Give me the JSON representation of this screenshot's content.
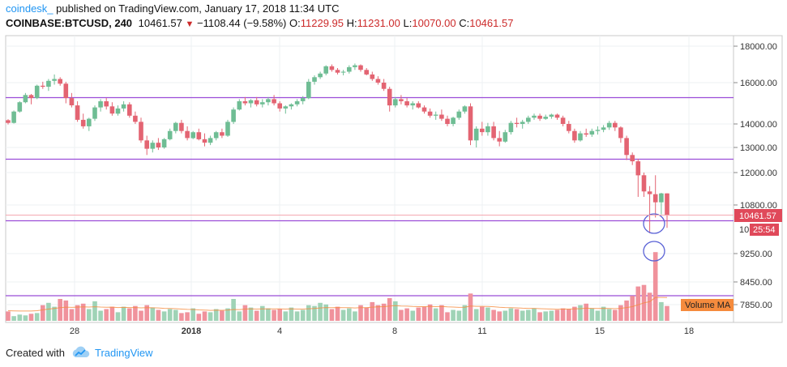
{
  "header": {
    "author": "coindesk_",
    "published": "published on TradingView.com, January 17, 2018 11:34 UTC",
    "symbol": "COINBASE:BTCUSD, 240",
    "last": "10461.57",
    "change": "−1108.44 (−9.58%)",
    "open_label": "O:",
    "open": "11229.95",
    "high_label": "H:",
    "high": "11231.00",
    "low_label": "L:",
    "low": "10070.00",
    "close_label": "C:",
    "close": "10461.57"
  },
  "footer": {
    "created_with": "Created with",
    "brand": "TradingView"
  },
  "colors": {
    "up": "#6fbd94",
    "down": "#e36472",
    "up_volume": "#9fd3b6",
    "down_volume": "#f0929c",
    "horizontal_line": "#9b4dd8",
    "price_tag": "#e0495a",
    "volume_ma": "#f58b3d",
    "circle": "#5a62d6"
  },
  "chart_data": {
    "type": "candlestick",
    "symbol": "COINBASE:BTCUSD",
    "timeframe": "240",
    "y_axis_ticks": [
      "18000.00",
      "16000.00",
      "14000.00",
      "13000.00",
      "12000.00",
      "10800.00",
      "10461.57",
      "9250.00",
      "8450.00",
      "7850.00"
    ],
    "x_axis_ticks": [
      "28",
      "2018",
      "4",
      "8",
      "11",
      "15",
      "18"
    ],
    "ylim": [
      7300,
      18700
    ],
    "price_tag": "10461.57",
    "countdown_tag": "25:54",
    "volume_ma_label": "Volume MA",
    "horizontal_levels": [
      15300,
      12550,
      10300,
      8150
    ],
    "candles": [
      [
        14180,
        14230,
        13980,
        14050
      ],
      [
        14050,
        14650,
        14020,
        14600
      ],
      [
        14600,
        15100,
        14550,
        15050
      ],
      [
        15050,
        15500,
        15000,
        15400
      ],
      [
        15400,
        15450,
        14950,
        15250
      ],
      [
        15250,
        15900,
        15200,
        15850
      ],
      [
        15850,
        16050,
        15700,
        15800
      ],
      [
        15800,
        16200,
        15600,
        16100
      ],
      [
        16100,
        16450,
        15900,
        16200
      ],
      [
        16200,
        16300,
        15850,
        15950
      ],
      [
        15950,
        16050,
        15000,
        15250
      ],
      [
        15250,
        15500,
        14800,
        14900
      ],
      [
        14900,
        15100,
        14100,
        14200
      ],
      [
        14200,
        14500,
        13800,
        13900
      ],
      [
        13900,
        14300,
        13700,
        14250
      ],
      [
        14250,
        14900,
        14150,
        14800
      ],
      [
        14800,
        15200,
        14600,
        15100
      ],
      [
        15100,
        15250,
        14700,
        14850
      ],
      [
        14850,
        15050,
        14400,
        14500
      ],
      [
        14500,
        14900,
        14400,
        14750
      ],
      [
        14750,
        15100,
        14600,
        14950
      ],
      [
        14950,
        15050,
        14300,
        14400
      ],
      [
        14400,
        14600,
        14000,
        14100
      ],
      [
        14100,
        14300,
        13200,
        13300
      ],
      [
        13300,
        13500,
        12700,
        12950
      ],
      [
        12950,
        13300,
        12800,
        13200
      ],
      [
        13200,
        13400,
        12900,
        13000
      ],
      [
        13000,
        13400,
        12950,
        13350
      ],
      [
        13350,
        13800,
        13300,
        13700
      ],
      [
        13700,
        14100,
        13600,
        14050
      ],
      [
        14050,
        14200,
        13600,
        13700
      ],
      [
        13700,
        13900,
        13300,
        13400
      ],
      [
        13400,
        13700,
        13350,
        13650
      ],
      [
        13650,
        13800,
        13300,
        13350
      ],
      [
        13350,
        13600,
        13050,
        13200
      ],
      [
        13200,
        13500,
        13100,
        13400
      ],
      [
        13400,
        13700,
        13300,
        13650
      ],
      [
        13650,
        13800,
        13400,
        13500
      ],
      [
        13500,
        14200,
        13450,
        14100
      ],
      [
        14100,
        14800,
        14000,
        14700
      ],
      [
        14700,
        15200,
        14650,
        15100
      ],
      [
        15100,
        15300,
        14900,
        15000
      ],
      [
        15000,
        15200,
        14800,
        15150
      ],
      [
        15150,
        15300,
        14850,
        14950
      ],
      [
        14950,
        15200,
        14800,
        15050
      ],
      [
        15050,
        15300,
        14900,
        15200
      ],
      [
        15200,
        15400,
        14900,
        15000
      ],
      [
        15000,
        15100,
        14600,
        14750
      ],
      [
        14750,
        14900,
        14500,
        14850
      ],
      [
        14850,
        15000,
        14700,
        14950
      ],
      [
        14950,
        15200,
        14850,
        15100
      ],
      [
        15100,
        15350,
        14950,
        15250
      ],
      [
        15250,
        16200,
        15200,
        16050
      ],
      [
        16050,
        16400,
        15900,
        16300
      ],
      [
        16300,
        16600,
        16200,
        16500
      ],
      [
        16500,
        16950,
        16400,
        16900
      ],
      [
        16900,
        17000,
        16600,
        16700
      ],
      [
        16700,
        16800,
        16450,
        16550
      ],
      [
        16550,
        16700,
        16400,
        16600
      ],
      [
        16600,
        16950,
        16500,
        16850
      ],
      [
        16850,
        17050,
        16700,
        16950
      ],
      [
        16950,
        17000,
        16600,
        16700
      ],
      [
        16700,
        16800,
        16400,
        16450
      ],
      [
        16450,
        16600,
        16100,
        16200
      ],
      [
        16200,
        16350,
        15900,
        16000
      ],
      [
        16000,
        16200,
        15600,
        15700
      ],
      [
        15700,
        15800,
        14600,
        14900
      ],
      [
        14900,
        15300,
        14800,
        15200
      ],
      [
        15200,
        15400,
        14950,
        15100
      ],
      [
        15100,
        15250,
        14800,
        14900
      ],
      [
        14900,
        15100,
        14700,
        15000
      ],
      [
        15000,
        15100,
        14750,
        14800
      ],
      [
        14800,
        14900,
        14500,
        14600
      ],
      [
        14600,
        14750,
        14300,
        14400
      ],
      [
        14400,
        14600,
        14200,
        14450
      ],
      [
        14450,
        14700,
        14150,
        14250
      ],
      [
        14250,
        14400,
        13900,
        14000
      ],
      [
        14000,
        14350,
        13900,
        14300
      ],
      [
        14300,
        14700,
        14200,
        14600
      ],
      [
        14600,
        14900,
        14500,
        14850
      ],
      [
        14850,
        15000,
        13100,
        13300
      ],
      [
        13300,
        13900,
        13000,
        13800
      ],
      [
        13800,
        14100,
        13500,
        13650
      ],
      [
        13650,
        14050,
        13500,
        13900
      ],
      [
        13900,
        14100,
        13300,
        13400
      ],
      [
        13400,
        13700,
        13050,
        13250
      ],
      [
        13250,
        13750,
        13200,
        13650
      ],
      [
        13650,
        14150,
        13550,
        14050
      ],
      [
        14050,
        14300,
        13850,
        14000
      ],
      [
        14000,
        14200,
        13800,
        14100
      ],
      [
        14100,
        14400,
        14000,
        14300
      ],
      [
        14300,
        14500,
        14200,
        14400
      ],
      [
        14400,
        14500,
        14150,
        14250
      ],
      [
        14250,
        14450,
        14200,
        14350
      ],
      [
        14350,
        14500,
        14250,
        14450
      ],
      [
        14450,
        14500,
        14200,
        14300
      ],
      [
        14300,
        14400,
        13900,
        14000
      ],
      [
        14000,
        14150,
        13600,
        13700
      ],
      [
        13700,
        13800,
        13200,
        13300
      ],
      [
        13300,
        13700,
        13250,
        13600
      ],
      [
        13600,
        13800,
        13450,
        13550
      ],
      [
        13550,
        13800,
        13450,
        13700
      ],
      [
        13700,
        13900,
        13550,
        13750
      ],
      [
        13750,
        13950,
        13650,
        13850
      ],
      [
        13850,
        14150,
        13750,
        14050
      ],
      [
        14050,
        14150,
        13700,
        13850
      ],
      [
        13850,
        13900,
        13200,
        13400
      ],
      [
        13400,
        13500,
        12500,
        12700
      ],
      [
        12700,
        12800,
        12300,
        12450
      ],
      [
        12450,
        12550,
        11100,
        11900
      ],
      [
        11900,
        12000,
        11100,
        11300
      ],
      [
        11300,
        11500,
        9900,
        11200
      ],
      [
        11200,
        11900,
        10400,
        10900
      ],
      [
        10900,
        11250,
        10500,
        11230
      ],
      [
        11229.95,
        11231,
        10070,
        10461.57
      ]
    ],
    "volumes": [
      120,
      60,
      80,
      70,
      90,
      100,
      200,
      230,
      180,
      280,
      260,
      150,
      200,
      220,
      150,
      250,
      130,
      150,
      180,
      110,
      180,
      160,
      190,
      130,
      200,
      170,
      140,
      120,
      150,
      140,
      100,
      110,
      160,
      90,
      120,
      110,
      150,
      130,
      160,
      280,
      120,
      200,
      170,
      130,
      190,
      160,
      140,
      150,
      120,
      170,
      120,
      140,
      200,
      190,
      230,
      210,
      150,
      180,
      140,
      160,
      120,
      200,
      170,
      240,
      200,
      220,
      290,
      250,
      140,
      160,
      130,
      170,
      180,
      210,
      160,
      200,
      110,
      140,
      130,
      200,
      350,
      150,
      180,
      170,
      140,
      120,
      130,
      160,
      150,
      130,
      140,
      160,
      110,
      120,
      130,
      140,
      160,
      150,
      180,
      200,
      220,
      160,
      130,
      180,
      150,
      140,
      200,
      260,
      320,
      440,
      460,
      360,
      880,
      240,
      190
    ],
    "volume_ma": [
      130,
      128,
      126,
      125,
      126,
      130,
      140,
      150,
      158,
      168,
      175,
      172,
      175,
      178,
      176,
      180,
      176,
      174,
      175,
      170,
      172,
      170,
      170,
      166,
      168,
      167,
      165,
      160,
      158,
      156,
      150,
      146,
      145,
      140,
      138,
      134,
      136,
      135,
      137,
      145,
      144,
      150,
      152,
      150,
      154,
      153,
      152,
      152,
      150,
      153,
      150,
      150,
      155,
      158,
      165,
      170,
      168,
      170,
      168,
      168,
      165,
      168,
      168,
      175,
      178,
      182,
      190,
      194,
      190,
      188,
      184,
      182,
      182,
      185,
      182,
      184,
      178,
      176,
      172,
      174,
      190,
      186,
      186,
      184,
      180,
      174,
      170,
      168,
      166,
      162,
      160,
      160,
      156,
      152,
      150,
      148,
      150,
      150,
      152,
      156,
      162,
      160,
      158,
      160,
      158,
      156,
      160,
      170,
      182,
      205,
      230,
      245,
      300,
      300,
      298
    ]
  }
}
